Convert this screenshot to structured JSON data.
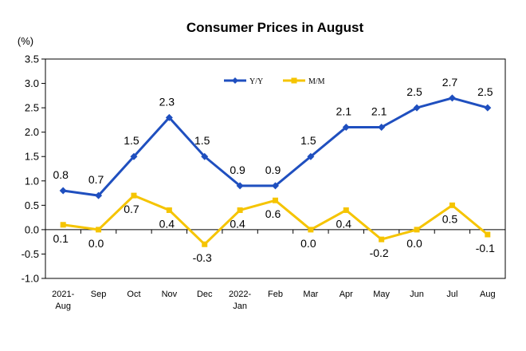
{
  "chart_data": {
    "type": "line",
    "title": "Consumer Prices in August",
    "unit": "(%)",
    "categories": [
      [
        "2021-",
        "Aug"
      ],
      [
        "Sep"
      ],
      [
        "Oct"
      ],
      [
        "Nov"
      ],
      [
        "Dec"
      ],
      [
        "2022-",
        "Jan"
      ],
      [
        "Feb"
      ],
      [
        "Mar"
      ],
      [
        "Apr"
      ],
      [
        "May"
      ],
      [
        "Jun"
      ],
      [
        "Jul"
      ],
      [
        "Aug"
      ]
    ],
    "ylim": [
      -1.0,
      3.5
    ],
    "yticks": [
      "3.5",
      "3.0",
      "2.5",
      "2.0",
      "1.5",
      "1.0",
      "0.5",
      "0.0",
      "-0.5",
      "-1.0"
    ],
    "grid": false,
    "legend_position": "top-center",
    "series": [
      {
        "name": "Y/Y",
        "color": "#1f4fbf",
        "marker": "diamond",
        "values": [
          0.8,
          0.7,
          1.5,
          2.3,
          1.5,
          0.9,
          0.9,
          1.5,
          2.1,
          2.1,
          2.5,
          2.7,
          2.5
        ],
        "labels": [
          "0.8",
          "0.7",
          "1.5",
          "2.3",
          "1.5",
          "0.9",
          "0.9",
          "1.5",
          "2.1",
          "2.1",
          "2.5",
          "2.7",
          "2.5"
        ]
      },
      {
        "name": "M/M",
        "color": "#f5c400",
        "marker": "square",
        "values": [
          0.1,
          0.0,
          0.7,
          0.4,
          -0.3,
          0.4,
          0.6,
          0.0,
          0.4,
          -0.2,
          0.0,
          0.5,
          -0.1
        ],
        "labels": [
          "0.1",
          "0.0",
          "0.7",
          "0.4",
          "-0.3",
          "0.4",
          "0.6",
          "0.0",
          "0.4",
          "-0.2",
          "0.0",
          "0.5",
          "-0.1"
        ]
      }
    ]
  }
}
